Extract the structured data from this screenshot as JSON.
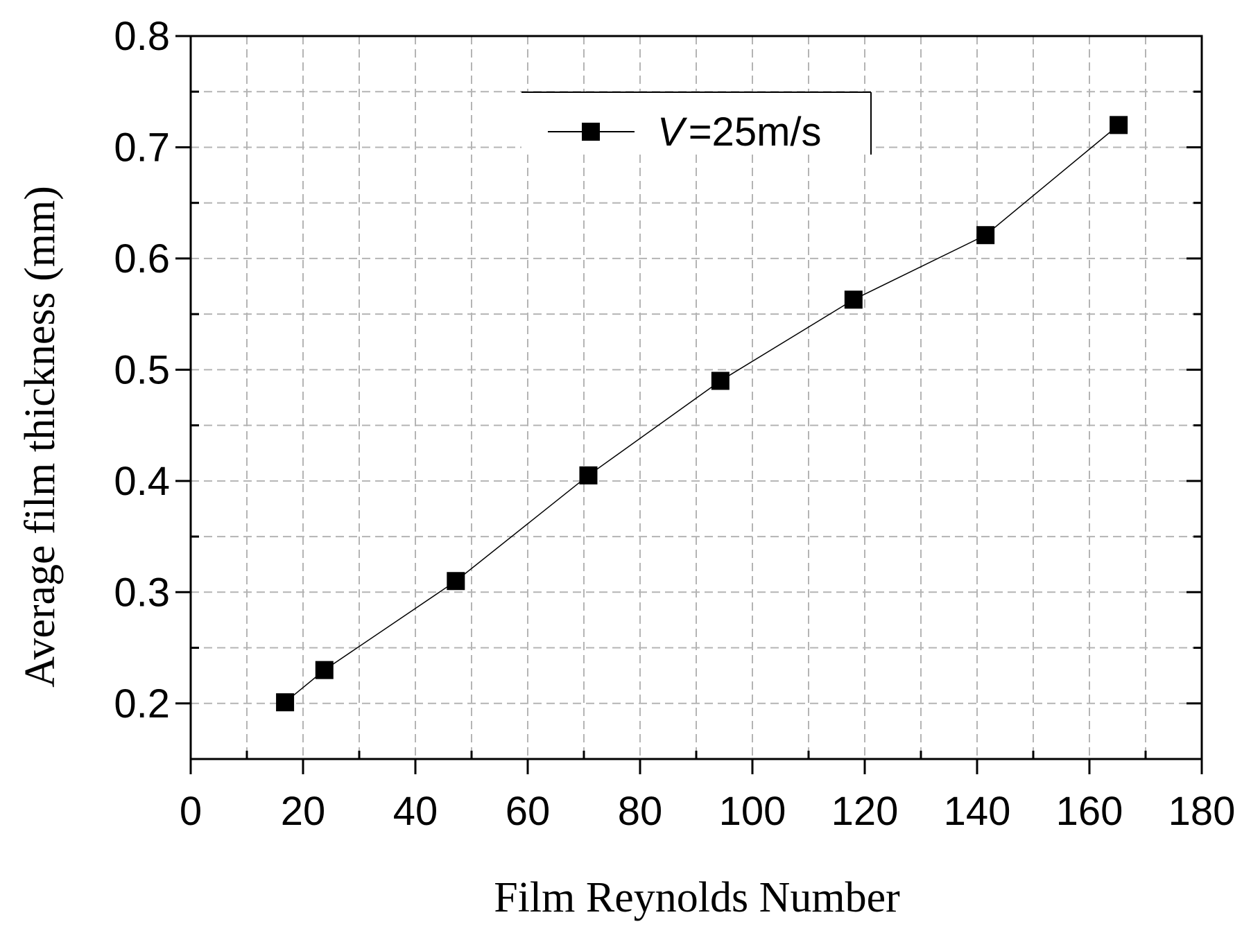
{
  "chart_data": {
    "type": "line",
    "xlabel": "Film Reynolds Number",
    "ylabel": "Average film thickness (mm)",
    "xlim": [
      0,
      180
    ],
    "ylim": [
      0.15,
      0.8
    ],
    "xticks": [
      0,
      20,
      40,
      60,
      80,
      100,
      120,
      140,
      160,
      180
    ],
    "xtick_labels": [
      "0",
      "20",
      "40",
      "60",
      "80",
      "100",
      "120",
      "140",
      "160",
      "180"
    ],
    "yticks": [
      0.2,
      0.3,
      0.4,
      0.5,
      0.6,
      0.7,
      0.8
    ],
    "ytick_labels": [
      "0.2",
      "0.3",
      "0.4",
      "0.5",
      "0.6",
      "0.7",
      "0.8"
    ],
    "grid": true,
    "legend": {
      "position": "top-center",
      "label_var": "V",
      "label_rest": "=25m/s"
    },
    "series": [
      {
        "name": "V=25m/s",
        "color": "#000000",
        "marker": "square",
        "x": [
          16.8,
          23.8,
          47.2,
          70.8,
          94.3,
          118.0,
          141.5,
          165.2
        ],
        "y": [
          0.201,
          0.23,
          0.31,
          0.405,
          0.49,
          0.563,
          0.621,
          0.72
        ]
      }
    ]
  }
}
